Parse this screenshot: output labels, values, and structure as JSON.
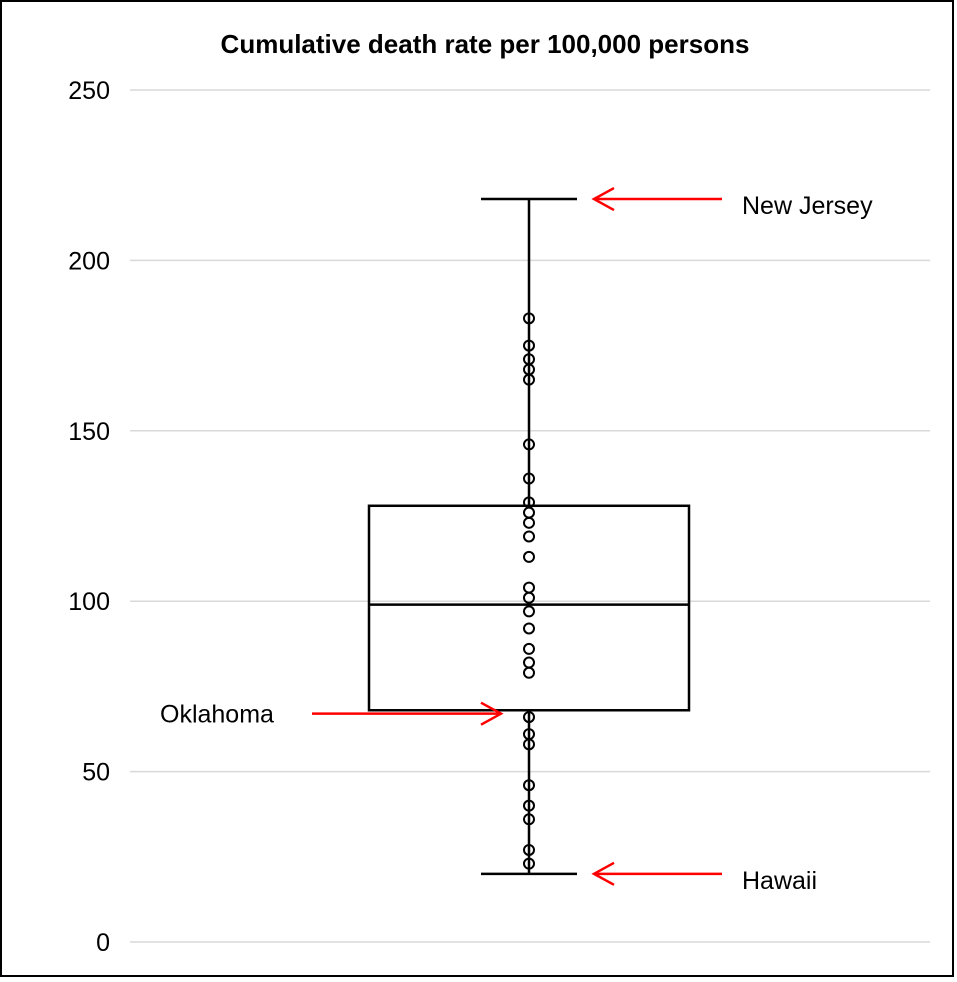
{
  "chart_data": {
    "type": "box",
    "title": "Cumulative death rate per 100,000 persons",
    "xlabel": "",
    "ylabel": "",
    "ylim": [
      0,
      250
    ],
    "yticks": [
      0,
      50,
      100,
      150,
      200,
      250
    ],
    "grid": true,
    "box": {
      "min": 20,
      "q1": 68,
      "median": 99,
      "q3": 128,
      "max": 218
    },
    "points": [
      183,
      175,
      171,
      168,
      165,
      146,
      136,
      129,
      126,
      123,
      119,
      113,
      104,
      101,
      97,
      92,
      86,
      82,
      79,
      66,
      61,
      58,
      46,
      40,
      36,
      27,
      23
    ],
    "annotations": [
      {
        "label": "New Jersey",
        "value": 218,
        "side": "right"
      },
      {
        "label": "Oklahoma",
        "value": 67,
        "side": "left"
      },
      {
        "label": "Hawaii",
        "value": 20,
        "side": "right"
      }
    ],
    "colors": {
      "box": "#000000",
      "grid": "#d9d9d9",
      "arrow": "#ff0000",
      "frame": "#000000"
    }
  }
}
